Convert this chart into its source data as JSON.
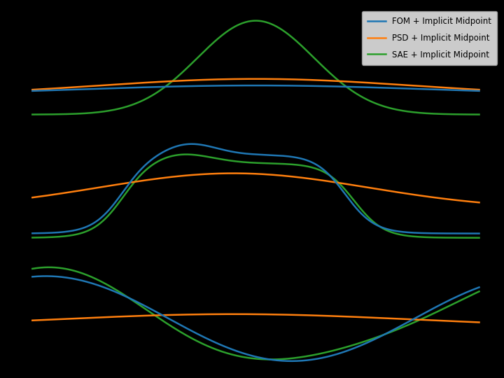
{
  "background_color": "#000000",
  "legend": {
    "labels": [
      "FOM + Implicit Midpoint",
      "PSD + Implicit Midpoint",
      "SAE + Implicit Midpoint"
    ],
    "colors": [
      "#1f77b4",
      "#ff7f0e",
      "#2ca02c"
    ]
  },
  "line_width": 1.8
}
